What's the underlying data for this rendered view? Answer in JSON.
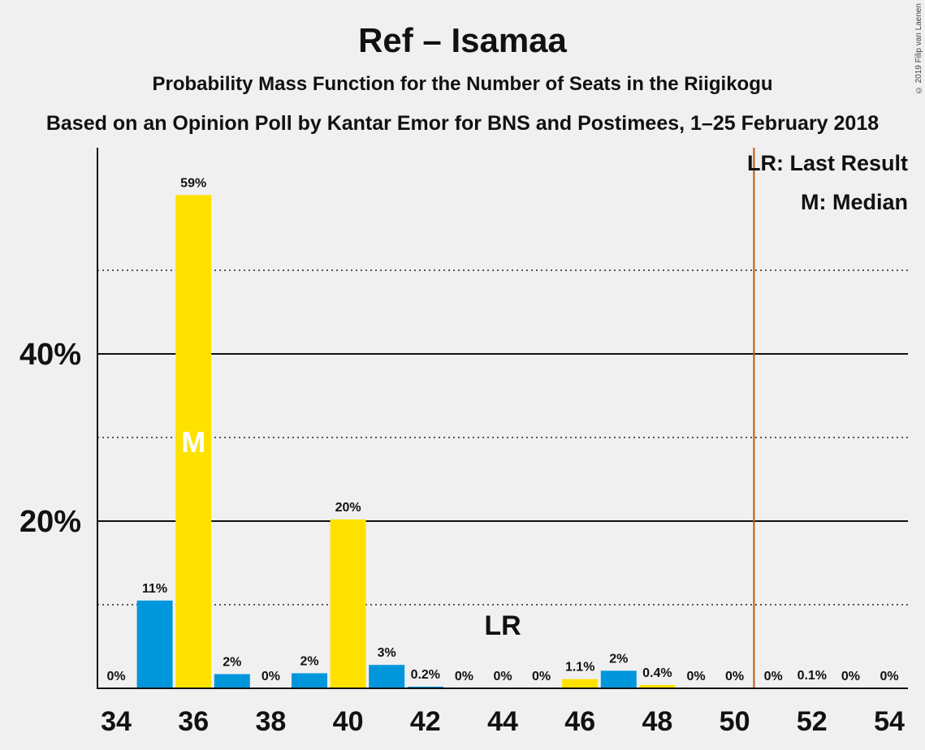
{
  "title": "Ref – Isamaa",
  "subtitle": "Probability Mass Function for the Number of Seats in the Riigikogu",
  "subtitle2": "Based on an Opinion Poll by Kantar Emor for BNS and Postimees, 1–25 February 2018",
  "credit": "© 2019 Filip van Laenen",
  "legend": {
    "lr": "LR: Last Result",
    "m": "M: Median"
  },
  "markers": {
    "median_label": "M",
    "lr_label": "LR",
    "median_seat": 36,
    "lr_seat": 44,
    "majority_line_seat": 50.5
  },
  "colors": {
    "blue": "#0096DC",
    "yellow": "#FFE100",
    "line": "#C0560F",
    "axis": "#111111"
  },
  "chart_data": {
    "type": "bar",
    "categories": [
      34,
      35,
      36,
      37,
      38,
      39,
      40,
      41,
      42,
      43,
      44,
      45,
      46,
      47,
      48,
      49,
      50,
      51,
      52,
      53,
      54
    ],
    "values": [
      0,
      10.5,
      59,
      1.7,
      0,
      1.8,
      20.2,
      2.8,
      0.2,
      0,
      0,
      0,
      1.1,
      2.1,
      0.4,
      0,
      0,
      0,
      0.1,
      0,
      0
    ],
    "labels": [
      "0%",
      "11%",
      "59%",
      "2%",
      "0%",
      "2%",
      "20%",
      "3%",
      "0.2%",
      "0%",
      "0%",
      "0%",
      "1.1%",
      "2%",
      "0.4%",
      "0%",
      "0%",
      "0%",
      "0.1%",
      "0%",
      "0%"
    ],
    "bar_colors": [
      "blue",
      "blue",
      "yellow",
      "blue",
      "blue",
      "blue",
      "yellow",
      "blue",
      "blue",
      "blue",
      "blue",
      "blue",
      "yellow",
      "blue",
      "yellow",
      "blue",
      "blue",
      "blue",
      "blue",
      "blue",
      "blue"
    ],
    "xticks": [
      34,
      36,
      38,
      40,
      42,
      44,
      46,
      48,
      50,
      52,
      54
    ],
    "yticks": [
      20,
      40
    ],
    "ytick_labels": [
      "20%",
      "40%"
    ],
    "minor_gridlines": [
      10,
      30,
      50
    ],
    "ylim": [
      0,
      64
    ],
    "legend_position": "top-right"
  }
}
